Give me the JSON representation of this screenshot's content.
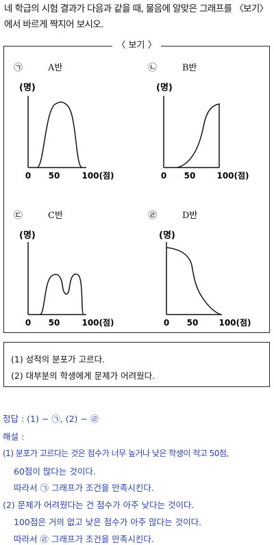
{
  "intro": "네 학급의 시험 결과가 다음과 같을 때, 물음에 알맞은 그래프를 〈보기〉에서 바르게 짝지어 보시오.",
  "bogi_title": "〈 보기 〉",
  "axis": {
    "y_label": "(명)",
    "x_ticks": [
      "0",
      "50",
      "100(점)"
    ]
  },
  "panels": [
    {
      "marker": "㉠",
      "name": "A반",
      "shape": "bell-centered"
    },
    {
      "marker": "㉡",
      "name": "B반",
      "shape": "rising-to-high"
    },
    {
      "marker": "㉢",
      "name": "C반",
      "shape": "bimodal"
    },
    {
      "marker": "㉣",
      "name": "D반",
      "shape": "falling-from-low"
    }
  ],
  "conditions": [
    "(1) 성적의 분포가 고르다.",
    "(2) 대부분의 학생에게 문제가 어려웠다."
  ],
  "answer": {
    "answer_line": "정답 : (1) − ㉠, (2) − ㉣",
    "explain_label": "해설 :",
    "lines": [
      "(1) 분포가 고르다는 것은 점수가 너무 높거나 낮은 학생이 적고 50점,",
      "60점이 많다는 것이다.",
      "따라서 ㉠ 그래프가 조건을 만족시킨다.",
      "(2) 문제가 어려웠다는 건 점수가 아주 낮다는 것이다.",
      "100점은 거의 없고 낮은 점수가 아주 많다는 것이다.",
      "따라서 ㉣ 그래프가 조건을 만족시킨다."
    ]
  }
}
